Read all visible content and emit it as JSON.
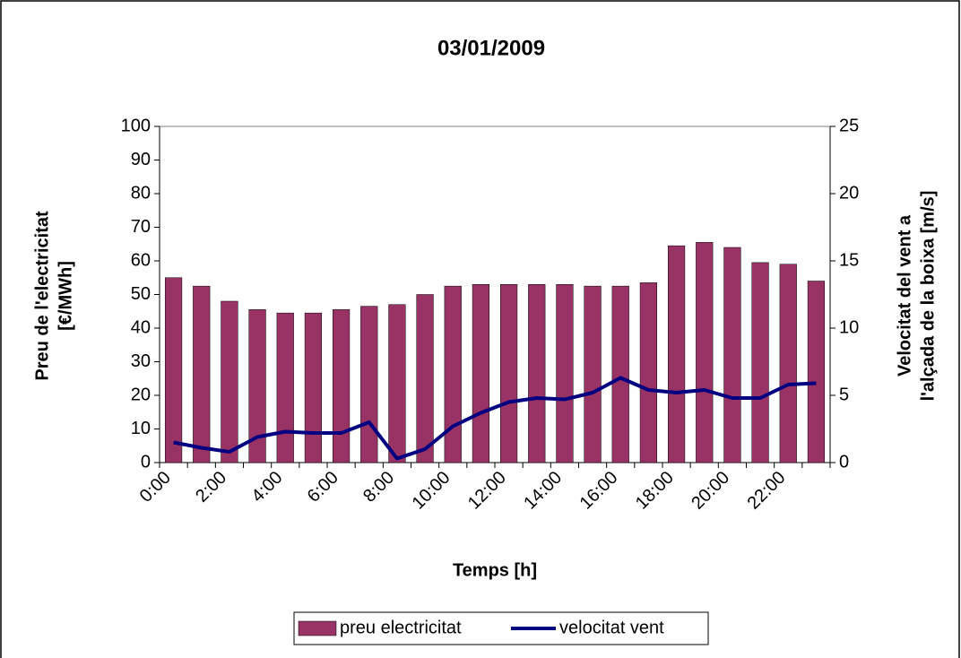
{
  "chart_data": {
    "type": "bar_line",
    "title": "03/01/2009",
    "xlabel": "Temps [h]",
    "ylabel": [
      "Preu de l'electricitat",
      "[€/MWh]"
    ],
    "y2label": [
      "Velocitat del vent a",
      "l'alçada de la boixa [m/s]"
    ],
    "categories": [
      "0:00",
      null,
      "2:00",
      null,
      "4:00",
      null,
      "6:00",
      null,
      "8:00",
      null,
      "10:00",
      null,
      "12:00",
      null,
      "14:00",
      null,
      "16:00",
      null,
      "18:00",
      null,
      "20:00",
      null,
      "22:00",
      null
    ],
    "series": [
      {
        "name": "preu electricitat",
        "type": "bar",
        "color": "#993366",
        "values": [
          55,
          52.5,
          48,
          45.5,
          44.5,
          44.5,
          45.5,
          46.5,
          47,
          50,
          52.5,
          53,
          53,
          53,
          53,
          52.5,
          52.5,
          53.5,
          64.5,
          65.5,
          64,
          59.5,
          59,
          54
        ]
      },
      {
        "name": "velocitat vent",
        "type": "line",
        "axis": "y2",
        "color": "#000080",
        "values": [
          1.5,
          1.1,
          0.8,
          1.9,
          2.3,
          2.2,
          2.2,
          3.0,
          0.3,
          1.0,
          2.7,
          3.7,
          4.5,
          4.8,
          4.7,
          5.2,
          6.3,
          5.4,
          5.2,
          5.4,
          4.8,
          4.8,
          5.8,
          5.9
        ]
      }
    ],
    "ylim": [
      0,
      100
    ],
    "yticks": [
      0,
      10,
      20,
      30,
      40,
      50,
      60,
      70,
      80,
      90,
      100
    ],
    "y2lim": [
      0,
      25
    ],
    "y2ticks": [
      0,
      5,
      10,
      15,
      20,
      25
    ],
    "legend": "bottom"
  }
}
